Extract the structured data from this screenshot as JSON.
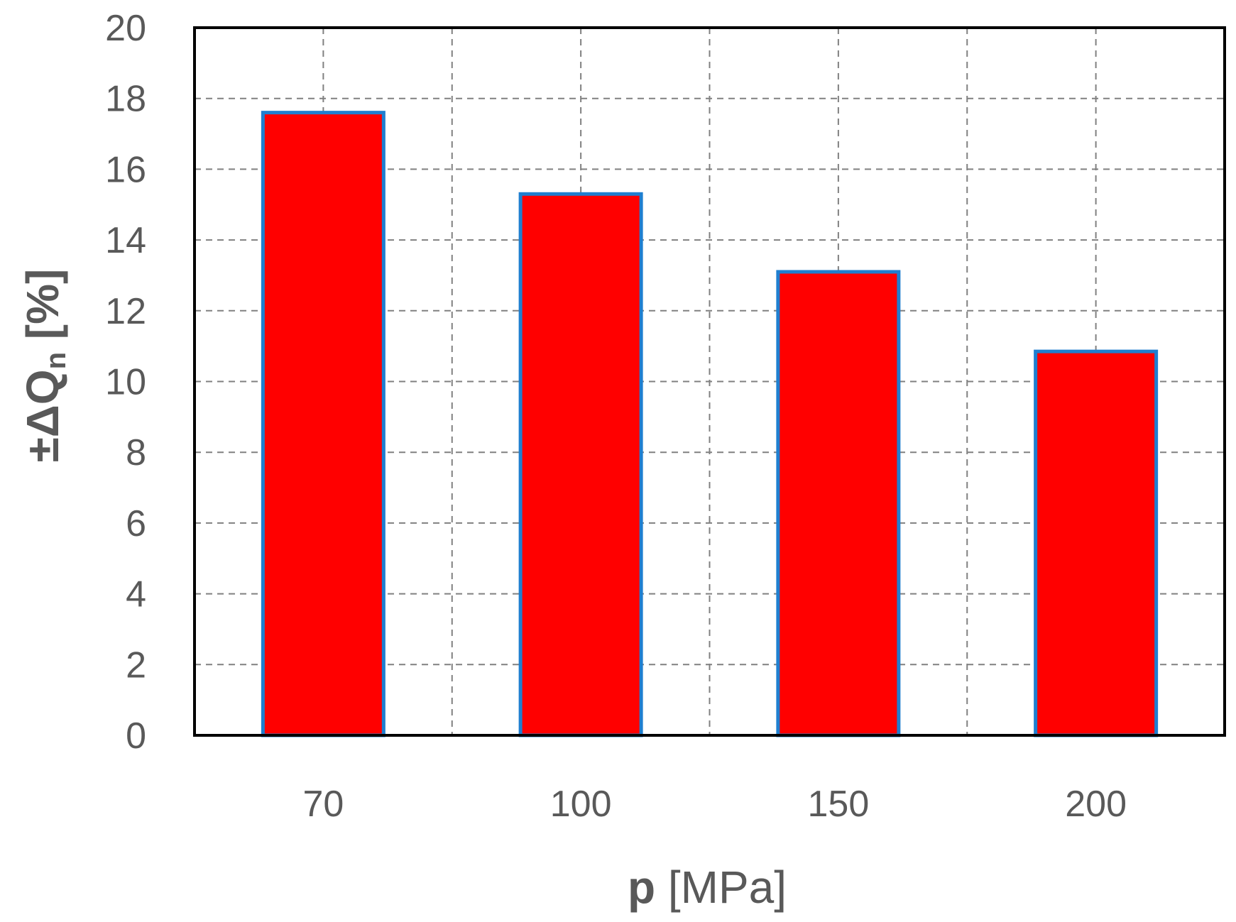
{
  "chart_data": {
    "type": "bar",
    "categories": [
      "70",
      "100",
      "150",
      "200"
    ],
    "values": [
      17.6,
      15.3,
      13.1,
      10.85
    ],
    "xlabel_bold": "p",
    "xlabel_rest": " [MPa]",
    "ylabel_main": "±ΔQ",
    "ylabel_sub": "n",
    "ylabel_rest": " [%]",
    "ylim": [
      0,
      20
    ],
    "yticks": [
      "0",
      "2",
      "4",
      "6",
      "8",
      "10",
      "12",
      "14",
      "16",
      "18",
      "20"
    ],
    "grid": true,
    "grid_style": "dashed",
    "legend": "none",
    "colors": {
      "bar_fill": "#ff0000",
      "bar_edge": "#1f7fd0",
      "grid": "#808080",
      "frame": "#000000",
      "text": "#595959"
    }
  }
}
